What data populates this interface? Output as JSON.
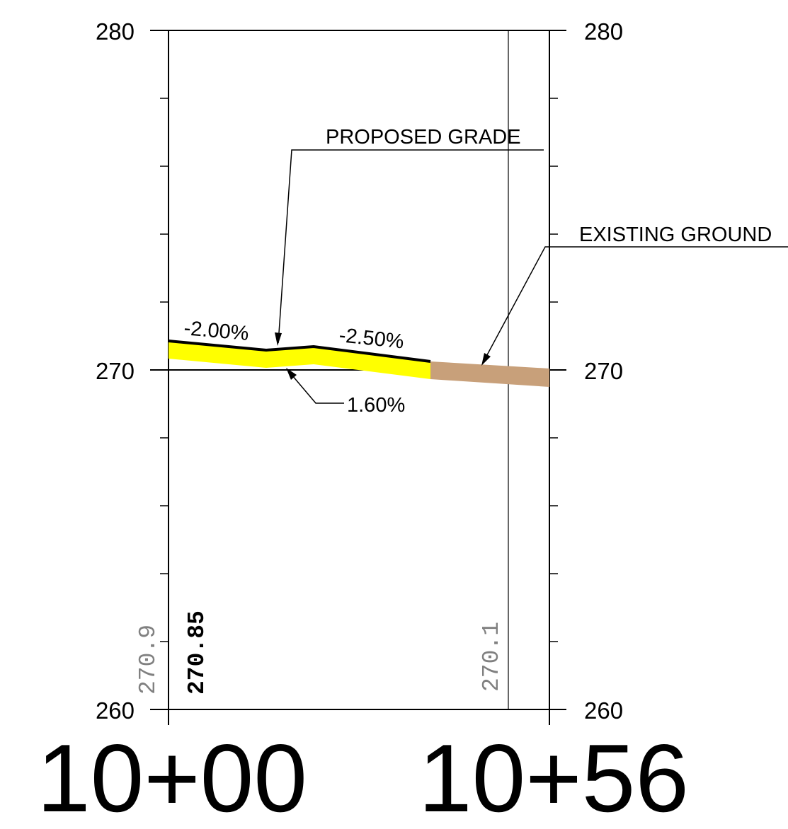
{
  "elevation_axis": {
    "top": "280",
    "middle": "270",
    "bottom": "260"
  },
  "stations": {
    "start": "10+00",
    "end": "10+56"
  },
  "callouts": {
    "proposed_grade": "PROPOSED GRADE",
    "existing_ground": "EXISTING GROUND"
  },
  "slopes": {
    "first": "-2.00%",
    "second": "-2.50%",
    "subgrade": "1.60%"
  },
  "elevation_labels": {
    "existing_start": "270.9",
    "proposed_start": "270.85",
    "existing_mid": "270.1"
  },
  "colors": {
    "proposed_fill": "#ffff00",
    "existing_fill": "#c8a07a",
    "line": "#000000",
    "muted_text": "#808080"
  }
}
